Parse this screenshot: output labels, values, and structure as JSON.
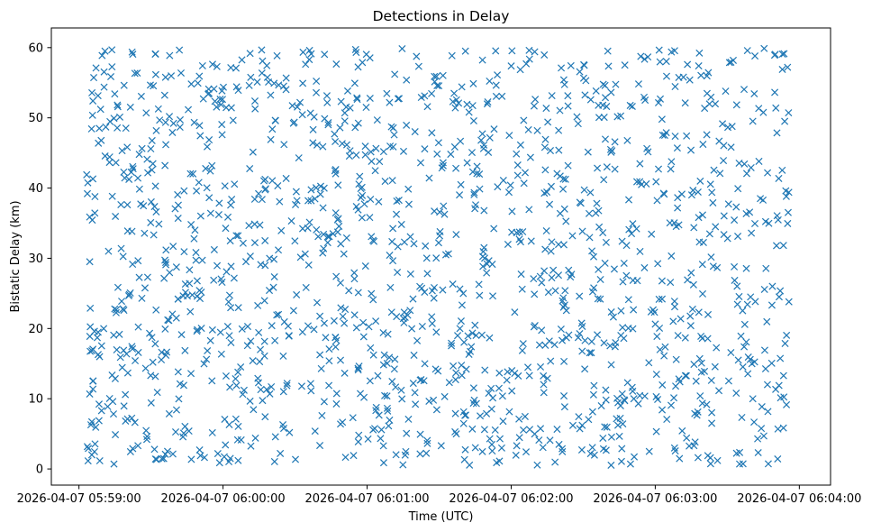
{
  "chart_data": {
    "type": "scatter",
    "title": "Detections in Delay",
    "xlabel": "Time (UTC)",
    "ylabel": "Bistatic Delay (km)",
    "marker": "x",
    "marker_color": "#1f77b4",
    "x_unit": "seconds after 2026-04-07 05:59:00",
    "xlim": [
      -11.5,
      313
    ],
    "ylim": [
      -2.3,
      62.8
    ],
    "x_ticks": [
      {
        "value": 0,
        "label": "2026-04-07 05:59:00"
      },
      {
        "value": 60,
        "label": "2026-04-07 06:00:00"
      },
      {
        "value": 120,
        "label": "2026-04-07 06:01:00"
      },
      {
        "value": 180,
        "label": "2026-04-07 06:02:00"
      },
      {
        "value": 240,
        "label": "2026-04-07 06:03:00"
      },
      {
        "value": 300,
        "label": "2026-04-07 06:04:00"
      }
    ],
    "y_ticks": [
      {
        "value": 0,
        "label": "0"
      },
      {
        "value": 10,
        "label": "10"
      },
      {
        "value": 20,
        "label": "20"
      },
      {
        "value": 30,
        "label": "30"
      },
      {
        "value": 40,
        "label": "40"
      },
      {
        "value": 50,
        "label": "50"
      },
      {
        "value": 60,
        "label": "60"
      }
    ],
    "series": [
      {
        "name": "Detections",
        "x_start": 3.0,
        "x_end": 296.0,
        "y_min": 0.5,
        "y_max": 59.9,
        "count": 1500,
        "distribution": "approximately uniform over the time span and delay range",
        "x": [
          3.5,
          5.8,
          7.1,
          9.4,
          12.3,
          14.9,
          18.7,
          22.4,
          25.1,
          28.6,
          31.9,
          36.2,
          41.3,
          45.8,
          50.2,
          55.6,
          60.8,
          66.3,
          70.9,
          75.7,
          80.1,
          85.4,
          90.6,
          95.9,
          101.2,
          105.8,
          110.7,
          116.3,
          121.4,
          126.8,
          131.5,
          136.9,
          142.3,
          147.6,
          152.8,
          158.1,
          163.4,
          168.7,
          173.9,
          179.2,
          184.6,
          189.8,
          195.1,
          200.4,
          205.7,
          211.1,
          216.3,
          221.6,
          226.9,
          232.2,
          237.5,
          242.8,
          248.1,
          253.4,
          258.7,
          264.0,
          269.3,
          274.6,
          279.9,
          285.2,
          290.5,
          295.1
        ],
        "y": [
          39.2,
          12.5,
          57.1,
          8.3,
          31.0,
          53.4,
          22.6,
          2.9,
          44.8,
          27.3,
          59.1,
          16.2,
          35.7,
          5.4,
          48.9,
          19.8,
          40.3,
          1.2,
          54.6,
          29.1,
          11.7,
          46.2,
          24.8,
          58.3,
          7.6,
          33.5,
          50.7,
          14.1,
          38.4,
          3.3,
          56.2,
          21.9,
          43.6,
          9.8,
          30.5,
          52.1,
          17.4,
          36.8,
          0.9,
          47.5,
          25.6,
          59.4,
          12.9,
          41.7,
          6.2,
          55.3,
          28.4,
          45.1,
          18.6,
          34.2,
          2.5,
          49.8,
          23.1,
          57.6,
          10.4,
          37.9,
          53.8,
          15.5,
          42.9,
          4.7,
          31.8,
          57.2
        ]
      }
    ]
  }
}
